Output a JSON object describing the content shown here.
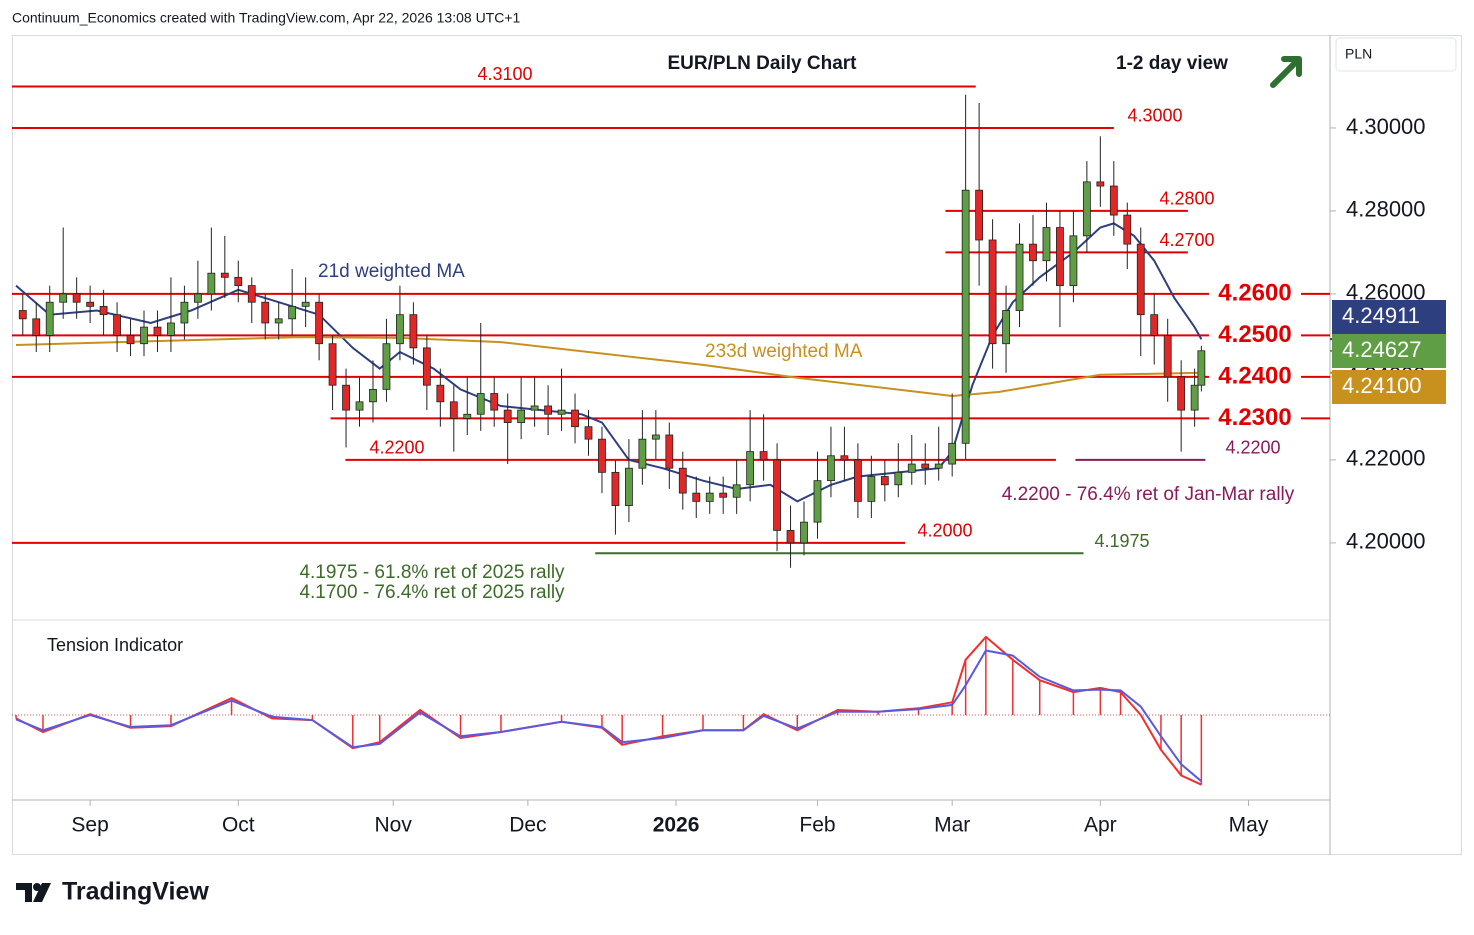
{
  "header": {
    "credit": "Continuum_Economics created with TradingView.com, Apr 22, 2026 13:08 UTC+1",
    "currency": "PLN"
  },
  "footer": {
    "logo": "TradingView"
  },
  "chart_data": [
    {
      "type": "candlestick",
      "title": "EUR/PLN Daily Chart",
      "subtitle": "1-2 day view",
      "xlim": [
        -11.6,
        184.1
      ],
      "ylim": [
        4.1819,
        4.3224
      ],
      "xticks": [
        {
          "value": 0,
          "label": "Sep"
        },
        {
          "value": 22,
          "label": "Oct"
        },
        {
          "value": 45,
          "label": "Nov"
        },
        {
          "value": 65,
          "label": "Dec"
        },
        {
          "value": 87,
          "label": "2026"
        },
        {
          "value": 108,
          "label": "Feb"
        },
        {
          "value": 128,
          "label": "Mar"
        },
        {
          "value": 150,
          "label": "Apr"
        },
        {
          "value": 172,
          "label": "May"
        }
      ],
      "yticks": [
        {
          "value": 4.2,
          "label": "4.20000"
        },
        {
          "value": 4.22,
          "label": "4.22000"
        },
        {
          "value": 4.24,
          "label": "4.24000"
        },
        {
          "value": 4.26,
          "label": "4.26000"
        },
        {
          "value": 4.28,
          "label": "4.28000"
        },
        {
          "value": 4.3,
          "label": "4.30000"
        }
      ],
      "up_color": "#5f9e45",
      "down_color": "#e02828",
      "x": [
        -10,
        -8,
        -6,
        -4,
        -2,
        0,
        2,
        4,
        6,
        8,
        10,
        12,
        14,
        16,
        18,
        20,
        22,
        24,
        26,
        28,
        30,
        32,
        34,
        36,
        38,
        40,
        42,
        44,
        46,
        48,
        50,
        52,
        54,
        56,
        58,
        60,
        62,
        64,
        66,
        68,
        70,
        72,
        74,
        76,
        78,
        80,
        82,
        84,
        86,
        88,
        90,
        92,
        94,
        96,
        98,
        100,
        102,
        104,
        106,
        108,
        110,
        112,
        114,
        116,
        118,
        120,
        122,
        124,
        126,
        128,
        130,
        132,
        134,
        136,
        138,
        140,
        142,
        144,
        146,
        148,
        150,
        152,
        154,
        156,
        158,
        160,
        162,
        164,
        165
      ],
      "open": [
        4.256,
        4.254,
        4.25,
        4.258,
        4.26,
        4.258,
        4.257,
        4.255,
        4.25,
        4.248,
        4.252,
        4.25,
        4.253,
        4.258,
        4.26,
        4.265,
        4.264,
        4.262,
        4.258,
        4.253,
        4.254,
        4.257,
        4.258,
        4.248,
        4.238,
        4.232,
        4.234,
        4.237,
        4.248,
        4.255,
        4.247,
        4.238,
        4.234,
        4.23,
        4.231,
        4.236,
        4.232,
        4.229,
        4.232,
        4.233,
        4.231,
        4.232,
        4.228,
        4.225,
        4.217,
        4.209,
        4.218,
        4.225,
        4.226,
        4.218,
        4.212,
        4.21,
        4.212,
        4.211,
        4.214,
        4.222,
        4.22,
        4.203,
        4.2,
        4.205,
        4.215,
        4.221,
        4.22,
        4.21,
        4.216,
        4.214,
        4.217,
        4.219,
        4.218,
        4.219,
        4.224,
        4.285,
        4.273,
        4.248,
        4.256,
        4.272,
        4.268,
        4.276,
        4.262,
        4.274,
        4.287,
        4.286,
        4.279,
        4.272,
        4.255,
        4.25,
        4.24,
        4.232,
        4.238
      ],
      "high": [
        4.26,
        4.258,
        4.262,
        4.276,
        4.264,
        4.262,
        4.261,
        4.258,
        4.254,
        4.256,
        4.256,
        4.264,
        4.262,
        4.268,
        4.276,
        4.274,
        4.268,
        4.264,
        4.26,
        4.258,
        4.266,
        4.264,
        4.26,
        4.25,
        4.242,
        4.24,
        4.244,
        4.254,
        4.262,
        4.258,
        4.25,
        4.242,
        4.238,
        4.24,
        4.253,
        4.24,
        4.236,
        4.24,
        4.24,
        4.238,
        4.242,
        4.236,
        4.232,
        4.228,
        4.22,
        4.225,
        4.232,
        4.232,
        4.229,
        4.222,
        4.216,
        4.216,
        4.216,
        4.22,
        4.232,
        4.231,
        4.224,
        4.209,
        4.21,
        4.222,
        4.228,
        4.228,
        4.224,
        4.221,
        4.22,
        4.224,
        4.226,
        4.224,
        4.228,
        4.236,
        4.308,
        4.306,
        4.278,
        4.262,
        4.277,
        4.279,
        4.282,
        4.28,
        4.28,
        4.292,
        4.298,
        4.292,
        4.282,
        4.276,
        4.26,
        4.254,
        4.244,
        4.242,
        4.2475
      ],
      "low": [
        4.25,
        4.246,
        4.246,
        4.254,
        4.254,
        4.253,
        4.25,
        4.246,
        4.245,
        4.245,
        4.246,
        4.246,
        4.249,
        4.254,
        4.256,
        4.259,
        4.258,
        4.253,
        4.249,
        4.249,
        4.25,
        4.252,
        4.244,
        4.232,
        4.223,
        4.228,
        4.229,
        4.234,
        4.244,
        4.243,
        4.232,
        4.228,
        4.222,
        4.226,
        4.227,
        4.228,
        4.219,
        4.225,
        4.228,
        4.226,
        4.227,
        4.224,
        4.221,
        4.212,
        4.202,
        4.205,
        4.214,
        4.22,
        4.213,
        4.208,
        4.206,
        4.207,
        4.207,
        4.207,
        4.21,
        4.215,
        4.198,
        4.194,
        4.197,
        4.201,
        4.211,
        4.215,
        4.206,
        4.206,
        4.21,
        4.211,
        4.214,
        4.214,
        4.215,
        4.216,
        4.22,
        4.262,
        4.242,
        4.241,
        4.252,
        4.262,
        4.263,
        4.252,
        4.258,
        4.27,
        4.281,
        4.274,
        4.266,
        4.245,
        4.243,
        4.234,
        4.222,
        4.228,
        4.2365
      ],
      "close": [
        4.254,
        4.25,
        4.258,
        4.26,
        4.258,
        4.257,
        4.255,
        4.25,
        4.248,
        4.252,
        4.25,
        4.253,
        4.258,
        4.26,
        4.265,
        4.264,
        4.262,
        4.258,
        4.253,
        4.254,
        4.257,
        4.258,
        4.248,
        4.238,
        4.232,
        4.234,
        4.237,
        4.248,
        4.255,
        4.247,
        4.238,
        4.234,
        4.23,
        4.231,
        4.236,
        4.232,
        4.229,
        4.232,
        4.233,
        4.231,
        4.232,
        4.228,
        4.225,
        4.217,
        4.209,
        4.218,
        4.225,
        4.226,
        4.218,
        4.212,
        4.21,
        4.212,
        4.211,
        4.214,
        4.222,
        4.22,
        4.203,
        4.2,
        4.205,
        4.215,
        4.221,
        4.22,
        4.21,
        4.216,
        4.214,
        4.217,
        4.219,
        4.218,
        4.219,
        4.224,
        4.285,
        4.273,
        4.248,
        4.256,
        4.272,
        4.268,
        4.276,
        4.262,
        4.274,
        4.287,
        4.286,
        4.279,
        4.272,
        4.255,
        4.25,
        4.24,
        4.232,
        4.238,
        4.2463
      ],
      "moving_averages": [
        {
          "name": "21d weighted MA",
          "color": "#2e3f80",
          "x": [
            -11,
            -6,
            1,
            9,
            15,
            22,
            28,
            34,
            39,
            43,
            46,
            51,
            55,
            61,
            67,
            73,
            76,
            80,
            85,
            91,
            96,
            101,
            105,
            110,
            114,
            120,
            126,
            128,
            131,
            134,
            137,
            141,
            146,
            150,
            152,
            155,
            158,
            161,
            164,
            165
          ],
          "values": [
            4.262,
            4.255,
            4.256,
            4.253,
            4.256,
            4.261,
            4.258,
            4.255,
            4.247,
            4.242,
            4.246,
            4.242,
            4.237,
            4.233,
            4.232,
            4.231,
            4.229,
            4.22,
            4.218,
            4.215,
            4.213,
            4.214,
            4.21,
            4.214,
            4.216,
            4.217,
            4.218,
            4.222,
            4.238,
            4.25,
            4.258,
            4.264,
            4.27,
            4.276,
            4.277,
            4.274,
            4.268,
            4.259,
            4.252,
            4.2491
          ]
        },
        {
          "name": "233d weighted MA",
          "color": "#c8911e",
          "x": [
            -11,
            31,
            46,
            61,
            91,
            105,
            128,
            135,
            150,
            165
          ],
          "values": [
            4.2477,
            4.2496,
            4.2494,
            4.2484,
            4.2429,
            4.2398,
            4.2354,
            4.2364,
            4.2405,
            4.241
          ]
        }
      ],
      "levels": [
        {
          "value": 4.31,
          "label": "4.3100",
          "span": [
            -11.6,
            131.5
          ],
          "color": "#e00000"
        },
        {
          "value": 4.3,
          "label": "4.3000",
          "span": [
            -11.6,
            152
          ],
          "color": "#e00000"
        },
        {
          "value": 4.28,
          "label": "4.2800",
          "span": [
            127,
            163
          ],
          "color": "#e00000"
        },
        {
          "value": 4.27,
          "label": "4.2700",
          "span": [
            127,
            163
          ],
          "color": "#e00000"
        },
        {
          "value": 4.26,
          "label": "4.2600",
          "span": [
            -11.6,
            184.1
          ],
          "color": "#e00000"
        },
        {
          "value": 4.25,
          "label": "4.2500",
          "span": [
            -11.6,
            184.1
          ],
          "color": "#e00000"
        },
        {
          "value": 4.24,
          "label": "4.2400",
          "span": [
            -11.6,
            184.1
          ],
          "color": "#e00000"
        },
        {
          "value": 4.23,
          "label": "4.2300",
          "span": [
            35.7,
            184.1
          ],
          "color": "#e00000"
        },
        {
          "value": 4.22,
          "label": "4.2200",
          "span": [
            37.9,
            143.4
          ],
          "color": "#e00000"
        },
        {
          "value": 4.2,
          "label": "4.2000",
          "span": [
            -11.6,
            121
          ],
          "color": "#e00000"
        },
        {
          "value": 4.1975,
          "label": "4.1975",
          "span": [
            75,
            147.5
          ],
          "color": "#3d6b2a"
        },
        {
          "value": 4.22,
          "label": "4.2200",
          "span": [
            146.3,
            165.6
          ],
          "color": "#8a1a5a"
        }
      ],
      "annotations": [
        {
          "text": "4.2200 - 76.4% ret of Jan-Mar rally",
          "color": "#8a1a5a"
        },
        {
          "text": "4.1975 - 61.8% ret of 2025 rally",
          "color": "#3d6b2a"
        },
        {
          "text": "4.1700 - 76.4% ret of 2025 rally",
          "color": "#3d6b2a"
        }
      ],
      "price_tags": [
        {
          "value": 4.24911,
          "label": "4.24911",
          "color": "#2e3f80"
        },
        {
          "value": 4.24627,
          "label": "4.24627",
          "color": "#5f9e45"
        },
        {
          "value": 4.241,
          "label": "4.24100",
          "color": "#c8911e"
        }
      ]
    },
    {
      "type": "line",
      "title": "Tension Indicator",
      "ylim": [
        -1,
        1.06
      ],
      "x": [
        -11,
        -7,
        0,
        6,
        12,
        21,
        27,
        33,
        39,
        43,
        49,
        55,
        61,
        70,
        76,
        79,
        85,
        91,
        97,
        100,
        105,
        111,
        117,
        123,
        128,
        130,
        133,
        137,
        141,
        146,
        150,
        153,
        156,
        159,
        162,
        165
      ],
      "series": [
        {
          "color": "#f03030",
          "values": [
            -0.04,
            -0.2,
            0.01,
            -0.15,
            -0.13,
            0.2,
            -0.04,
            -0.06,
            -0.39,
            -0.32,
            0.06,
            -0.27,
            -0.2,
            -0.08,
            -0.15,
            -0.35,
            -0.25,
            -0.18,
            -0.18,
            0.01,
            -0.18,
            0.06,
            0.04,
            0.08,
            0.15,
            0.65,
            0.92,
            0.65,
            0.41,
            0.27,
            0.32,
            0.27,
            0,
            -0.41,
            -0.71,
            -0.82
          ]
        },
        {
          "color": "#5a5ae0",
          "values": [
            -0.05,
            -0.18,
            0,
            -0.14,
            -0.12,
            0.17,
            -0.02,
            -0.06,
            -0.38,
            -0.34,
            0.03,
            -0.25,
            -0.2,
            -0.08,
            -0.14,
            -0.32,
            -0.27,
            -0.18,
            -0.18,
            -0.01,
            -0.16,
            0.04,
            0.04,
            0.07,
            0.12,
            0.35,
            0.76,
            0.7,
            0.45,
            0.29,
            0.3,
            0.29,
            0.1,
            -0.25,
            -0.58,
            -0.78
          ]
        }
      ]
    }
  ]
}
